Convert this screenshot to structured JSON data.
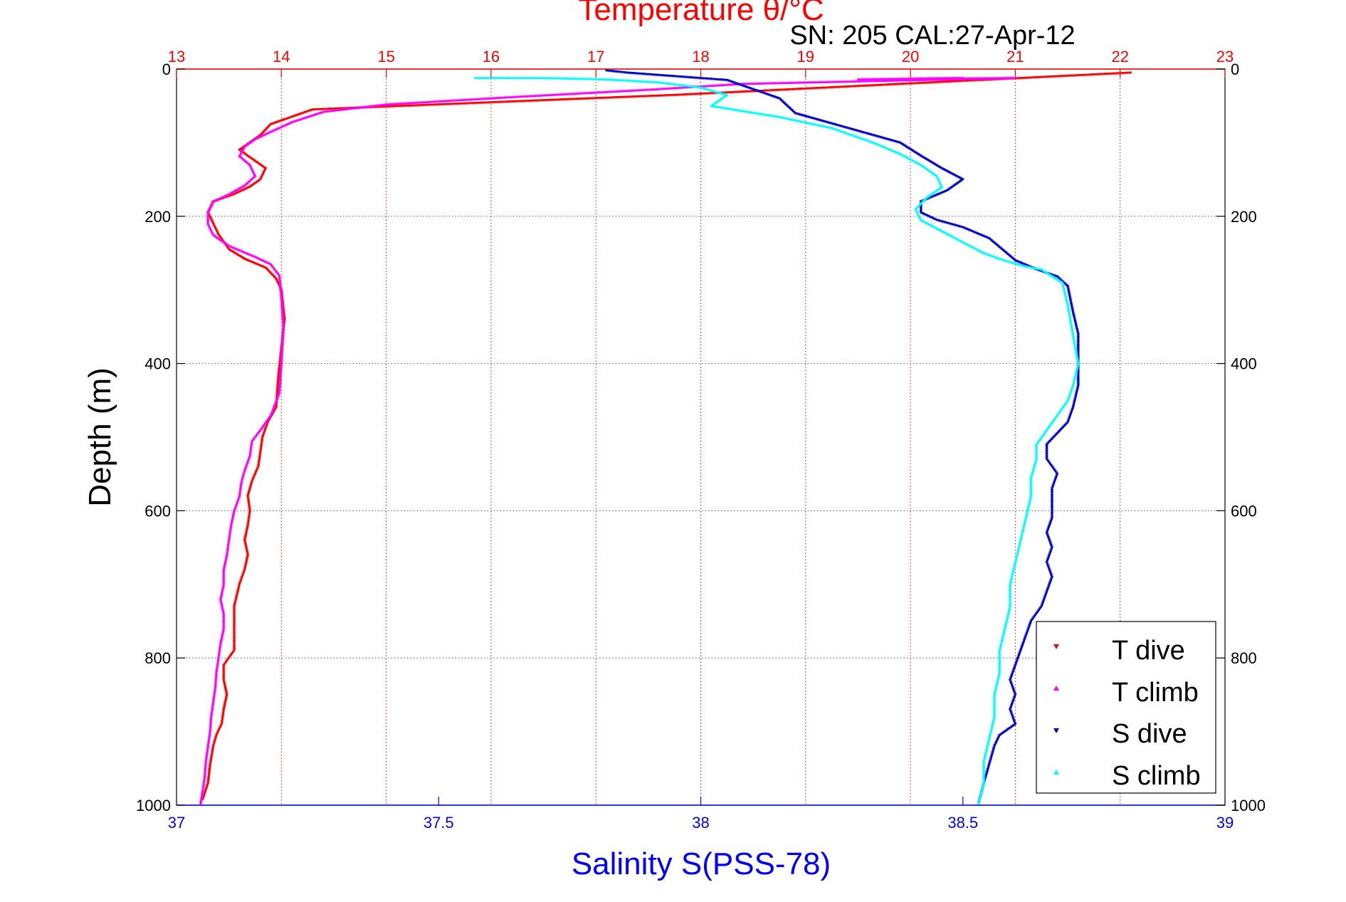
{
  "chart_data": {
    "type": "scatter",
    "title": "Temperature θ/°C",
    "subtitle": "SN: 205  CAL:27-Apr-12",
    "xlabel": "Salinity S(PSS-78)",
    "x2label": "Temperature θ/°C",
    "ylabel": "Depth (m)",
    "xlim": [
      37,
      39
    ],
    "x2lim": [
      13,
      23
    ],
    "ylim": [
      1000,
      0
    ],
    "y_reversed": true,
    "grid": true,
    "legend_position": "bottom-right",
    "x_ticks": [
      "37",
      "37.5",
      "38",
      "38.5",
      "39"
    ],
    "x2_ticks": [
      "13",
      "14",
      "15",
      "16",
      "17",
      "18",
      "19",
      "20",
      "21",
      "22",
      "23"
    ],
    "y_ticks": [
      "0",
      "200",
      "400",
      "600",
      "800",
      "1000"
    ],
    "colors": {
      "temperature_axis": "#ff0000",
      "salinity_axis": "#0000ff",
      "t_dive": "#ff0000",
      "t_climb": "#ff00ff",
      "s_dive": "#0000cc",
      "s_climb": "#00ffff"
    },
    "series": [
      {
        "name": "T dive",
        "axis": "temperature",
        "marker": "triangle-down",
        "color": "#ff0000",
        "points": [
          [
            22.1,
            5
          ],
          [
            17.8,
            35
          ],
          [
            14.3,
            55
          ],
          [
            13.9,
            75
          ],
          [
            13.8,
            90
          ],
          [
            13.7,
            100
          ],
          [
            13.6,
            110
          ],
          [
            13.7,
            120
          ],
          [
            13.85,
            135
          ],
          [
            13.8,
            150
          ],
          [
            13.7,
            160
          ],
          [
            13.55,
            170
          ],
          [
            13.35,
            180
          ],
          [
            13.3,
            195
          ],
          [
            13.35,
            210
          ],
          [
            13.4,
            225
          ],
          [
            13.5,
            245
          ],
          [
            13.65,
            258
          ],
          [
            13.85,
            270
          ],
          [
            13.95,
            285
          ],
          [
            14.0,
            300
          ],
          [
            14.03,
            340
          ],
          [
            14.0,
            380
          ],
          [
            13.97,
            420
          ],
          [
            13.95,
            460
          ],
          [
            13.87,
            480
          ],
          [
            13.82,
            500
          ],
          [
            13.8,
            520
          ],
          [
            13.78,
            540
          ],
          [
            13.72,
            560
          ],
          [
            13.68,
            580
          ],
          [
            13.7,
            600
          ],
          [
            13.68,
            620
          ],
          [
            13.65,
            640
          ],
          [
            13.68,
            660
          ],
          [
            13.65,
            680
          ],
          [
            13.6,
            700
          ],
          [
            13.55,
            730
          ],
          [
            13.55,
            760
          ],
          [
            13.55,
            790
          ],
          [
            13.45,
            810
          ],
          [
            13.45,
            830
          ],
          [
            13.48,
            850
          ],
          [
            13.45,
            870
          ],
          [
            13.43,
            890
          ],
          [
            13.38,
            905
          ],
          [
            13.35,
            920
          ],
          [
            13.32,
            945
          ],
          [
            13.3,
            970
          ],
          [
            13.25,
            992
          ]
        ]
      },
      {
        "name": "T climb",
        "axis": "temperature",
        "marker": "triangle-up",
        "color": "#ff00ff",
        "points": [
          [
            20.5,
            12
          ],
          [
            19.5,
            14
          ],
          [
            21.0,
            12
          ],
          [
            18.4,
            20
          ],
          [
            17.5,
            28
          ],
          [
            16.2,
            38
          ],
          [
            15.0,
            48
          ],
          [
            14.4,
            58
          ],
          [
            14.1,
            72
          ],
          [
            13.9,
            85
          ],
          [
            13.75,
            95
          ],
          [
            13.65,
            105
          ],
          [
            13.6,
            118
          ],
          [
            13.7,
            130
          ],
          [
            13.75,
            145
          ],
          [
            13.65,
            158
          ],
          [
            13.5,
            170
          ],
          [
            13.35,
            180
          ],
          [
            13.3,
            195
          ],
          [
            13.3,
            210
          ],
          [
            13.35,
            225
          ],
          [
            13.5,
            240
          ],
          [
            13.75,
            255
          ],
          [
            13.9,
            265
          ],
          [
            13.98,
            280
          ],
          [
            14.0,
            310
          ],
          [
            14.02,
            350
          ],
          [
            14.0,
            400
          ],
          [
            13.98,
            440
          ],
          [
            13.9,
            470
          ],
          [
            13.8,
            490
          ],
          [
            13.72,
            505
          ],
          [
            13.7,
            525
          ],
          [
            13.65,
            545
          ],
          [
            13.62,
            560
          ],
          [
            13.6,
            580
          ],
          [
            13.55,
            600
          ],
          [
            13.52,
            620
          ],
          [
            13.5,
            640
          ],
          [
            13.48,
            660
          ],
          [
            13.45,
            680
          ],
          [
            13.45,
            700
          ],
          [
            13.42,
            720
          ],
          [
            13.45,
            740
          ],
          [
            13.45,
            760
          ],
          [
            13.42,
            780
          ],
          [
            13.4,
            800
          ],
          [
            13.38,
            820
          ],
          [
            13.37,
            840
          ],
          [
            13.35,
            860
          ],
          [
            13.33,
            880
          ],
          [
            13.32,
            900
          ],
          [
            13.3,
            920
          ],
          [
            13.28,
            940
          ],
          [
            13.27,
            960
          ],
          [
            13.25,
            980
          ],
          [
            13.23,
            998
          ]
        ]
      },
      {
        "name": "S dive",
        "axis": "salinity",
        "marker": "triangle-down",
        "color": "#0000cc",
        "points": [
          [
            37.82,
            2
          ],
          [
            37.86,
            5
          ],
          [
            38.05,
            15
          ],
          [
            38.15,
            40
          ],
          [
            38.18,
            60
          ],
          [
            38.28,
            80
          ],
          [
            38.38,
            100
          ],
          [
            38.42,
            118
          ],
          [
            38.46,
            135
          ],
          [
            38.5,
            150
          ],
          [
            38.47,
            165
          ],
          [
            38.42,
            180
          ],
          [
            38.42,
            195
          ],
          [
            38.45,
            205
          ],
          [
            38.5,
            215
          ],
          [
            38.55,
            230
          ],
          [
            38.58,
            248
          ],
          [
            38.6,
            260
          ],
          [
            38.64,
            272
          ],
          [
            38.68,
            282
          ],
          [
            38.7,
            295
          ],
          [
            38.71,
            330
          ],
          [
            38.72,
            360
          ],
          [
            38.72,
            400
          ],
          [
            38.72,
            430
          ],
          [
            38.71,
            460
          ],
          [
            38.7,
            480
          ],
          [
            38.68,
            495
          ],
          [
            38.66,
            510
          ],
          [
            38.66,
            530
          ],
          [
            38.68,
            550
          ],
          [
            38.67,
            570
          ],
          [
            38.67,
            590
          ],
          [
            38.67,
            610
          ],
          [
            38.66,
            630
          ],
          [
            38.67,
            650
          ],
          [
            38.66,
            670
          ],
          [
            38.67,
            690
          ],
          [
            38.66,
            710
          ],
          [
            38.65,
            730
          ],
          [
            38.63,
            750
          ],
          [
            38.62,
            770
          ],
          [
            38.61,
            790
          ],
          [
            38.6,
            810
          ],
          [
            38.59,
            830
          ],
          [
            38.6,
            850
          ],
          [
            38.59,
            870
          ],
          [
            38.6,
            890
          ],
          [
            38.57,
            905
          ],
          [
            38.56,
            920
          ],
          [
            38.55,
            945
          ],
          [
            38.54,
            970
          ],
          [
            38.53,
            998
          ]
        ]
      },
      {
        "name": "S climb",
        "axis": "salinity",
        "marker": "triangle-up",
        "color": "#00ffff",
        "points": [
          [
            37.57,
            12
          ],
          [
            37.7,
            12
          ],
          [
            37.82,
            14
          ],
          [
            37.92,
            18
          ],
          [
            38.0,
            25
          ],
          [
            38.05,
            35
          ],
          [
            38.02,
            50
          ],
          [
            38.15,
            65
          ],
          [
            38.25,
            80
          ],
          [
            38.33,
            100
          ],
          [
            38.38,
            115
          ],
          [
            38.42,
            130
          ],
          [
            38.45,
            145
          ],
          [
            38.46,
            160
          ],
          [
            38.43,
            175
          ],
          [
            38.41,
            190
          ],
          [
            38.42,
            205
          ],
          [
            38.46,
            220
          ],
          [
            38.5,
            235
          ],
          [
            38.54,
            250
          ],
          [
            38.58,
            260
          ],
          [
            38.62,
            268
          ],
          [
            38.65,
            272
          ],
          [
            38.69,
            290
          ],
          [
            38.7,
            320
          ],
          [
            38.71,
            360
          ],
          [
            38.72,
            400
          ],
          [
            38.71,
            430
          ],
          [
            38.7,
            450
          ],
          [
            38.68,
            470
          ],
          [
            38.66,
            490
          ],
          [
            38.64,
            510
          ],
          [
            38.64,
            530
          ],
          [
            38.63,
            555
          ],
          [
            38.63,
            580
          ],
          [
            38.62,
            610
          ],
          [
            38.61,
            640
          ],
          [
            38.6,
            670
          ],
          [
            38.59,
            700
          ],
          [
            38.59,
            730
          ],
          [
            38.58,
            760
          ],
          [
            38.57,
            790
          ],
          [
            38.57,
            820
          ],
          [
            38.56,
            850
          ],
          [
            38.56,
            880
          ],
          [
            38.55,
            910
          ],
          [
            38.54,
            940
          ],
          [
            38.54,
            970
          ],
          [
            38.53,
            998
          ]
        ]
      }
    ]
  }
}
